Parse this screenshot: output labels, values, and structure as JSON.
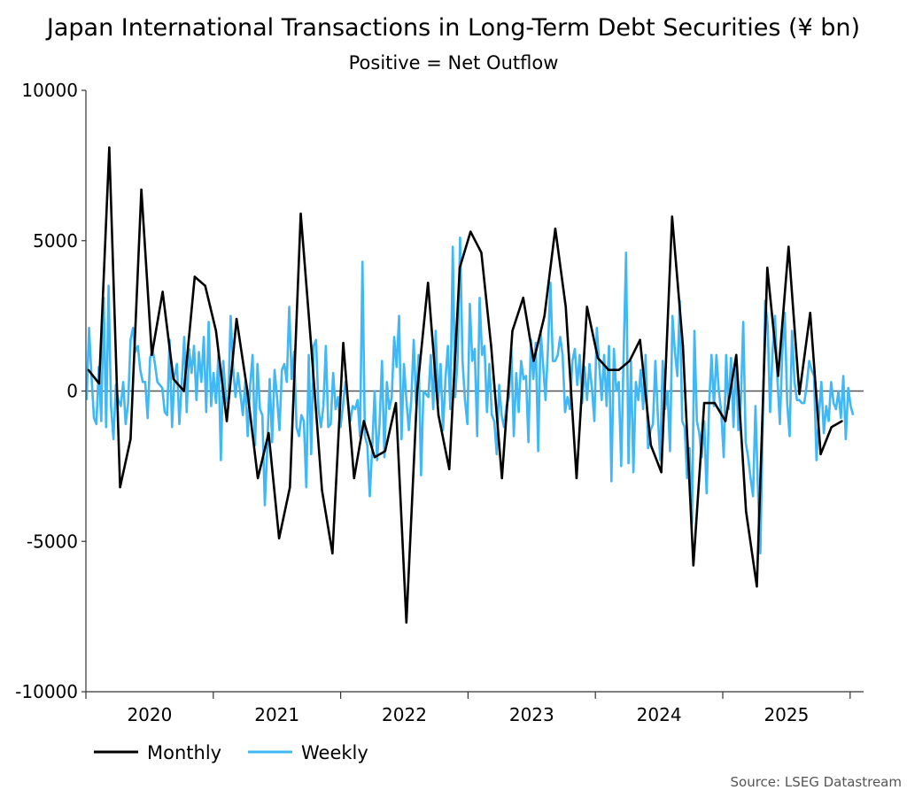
{
  "chart_data": {
    "type": "line",
    "title": "Japan International Transactions in Long-Term Debt Securities (¥ bn)",
    "subtitle": "Positive = Net Outflow",
    "source": "Source: LSEG Datastream",
    "xlabel": "",
    "ylabel": "",
    "ylim": [
      -10000,
      10000
    ],
    "y_ticks": [
      "10000",
      "5000",
      "0",
      "-5000",
      "-10000"
    ],
    "x_range": [
      "2020-01-01",
      "2026-02-01"
    ],
    "x_tick_labels": [
      "2020",
      "2021",
      "2022",
      "2023",
      "2024",
      "2025"
    ],
    "grid": false,
    "legend_position": "bottom-left",
    "colors": {
      "Monthly": "#000000",
      "Weekly": "#3fb8f5",
      "zero_line": "#555555"
    },
    "series": [
      {
        "name": "Monthly",
        "frequency": "monthly",
        "start": "2020-01",
        "values": [
          700,
          250,
          8100,
          -3200,
          -1600,
          6700,
          1200,
          3300,
          400,
          0,
          3800,
          3500,
          2000,
          -1000,
          2400,
          0,
          -2900,
          -1400,
          -4900,
          -3200,
          5900,
          1500,
          -3300,
          -5400,
          1600,
          -2900,
          -1000,
          -2200,
          -2000,
          -400,
          -7700,
          0,
          3600,
          -800,
          -2600,
          4100,
          5300,
          4600,
          1500,
          -2900,
          2000,
          3100,
          1000,
          2500,
          5400,
          2800,
          -2900,
          2800,
          1100,
          700,
          700,
          1000,
          1700,
          -1800,
          -2700,
          5800,
          1500,
          -5800,
          -400,
          -400,
          -1000,
          1200,
          -4000,
          -6500,
          4100,
          500,
          4800,
          -100,
          2600,
          -2100,
          -1200,
          -1000
        ]
      },
      {
        "name": "Weekly",
        "frequency": "weekly",
        "start": "2020-01-03",
        "values": [
          -300,
          2100,
          500,
          -900,
          -1100,
          800,
          -1000,
          3100,
          -1200,
          3500,
          -500,
          -1600,
          200,
          -300,
          -500,
          300,
          -1100,
          -400,
          1700,
          2100,
          1300,
          1500,
          700,
          300,
          300,
          -900,
          1100,
          1400,
          900,
          300,
          200,
          100,
          -700,
          -800,
          1700,
          -1200,
          500,
          900,
          -1100,
          300,
          1800,
          -700,
          1400,
          600,
          1500,
          -300,
          1300,
          300,
          1800,
          -700,
          2300,
          -500,
          600,
          -400,
          1200,
          -2300,
          1000,
          -200,
          -500,
          2500,
          800,
          -200,
          600,
          -100,
          -800,
          300,
          -1500,
          200,
          1200,
          -1800,
          900,
          -600,
          -800,
          -3800,
          -1900,
          400,
          -1700,
          700,
          -200,
          -1300,
          700,
          900,
          300,
          2800,
          400,
          1300,
          -1200,
          -1500,
          -800,
          -1000,
          -3200,
          1200,
          -2100,
          1500,
          1700,
          -600,
          -1200,
          -500,
          1500,
          -1200,
          -1100,
          600,
          -600,
          -200,
          -1200,
          -500,
          300,
          -300,
          -1000,
          -500,
          -600,
          -300,
          -1500,
          4300,
          -1500,
          -1800,
          -3500,
          -1900,
          0,
          -2300,
          -1100,
          1000,
          -2200,
          300,
          -600,
          -200,
          1800,
          800,
          2500,
          -1600,
          900,
          -300,
          -1300,
          -300,
          1700,
          -400,
          1200,
          -2800,
          0,
          -100,
          -200,
          1200,
          -600,
          2000,
          -400,
          900,
          -1300,
          400,
          1500,
          -600,
          4800,
          -200,
          1100,
          5100,
          1000,
          -300,
          -1100,
          2900,
          1000,
          1400,
          -1500,
          3100,
          1200,
          1500,
          -700,
          900,
          -800,
          -1000,
          -2100,
          200,
          -800,
          -1200,
          -500,
          -200,
          1400,
          -1500,
          600,
          -700,
          1000,
          400,
          500,
          -1700,
          1700,
          400,
          1600,
          -2000,
          2000,
          900,
          -300,
          1400,
          3600,
          1000,
          1000,
          1200,
          1800,
          1200,
          -700,
          -200,
          -600,
          1000,
          1400,
          200,
          1200,
          -400,
          800,
          -300,
          900,
          100,
          -1000,
          2100,
          900,
          -300,
          1200,
          -500,
          1500,
          -3000,
          1400,
          0,
          300,
          -2500,
          1200,
          4600,
          -2400,
          1000,
          -2700,
          300,
          -300,
          700,
          -600,
          1200,
          -1900,
          -1300,
          -1100,
          1000,
          -800,
          -2300,
          1000,
          -600,
          0,
          -2000,
          2500,
          1300,
          500,
          3000,
          -1000,
          -1200,
          -2900,
          -1900,
          -4400,
          2000,
          -1000,
          -1400,
          -2200,
          -1000,
          -3400,
          -500,
          1200,
          -500,
          1200,
          0,
          -700,
          -2200,
          1200,
          -600,
          1100,
          -1200,
          1100,
          -1300,
          -400,
          2300,
          -1700,
          -2200,
          -2900,
          -3500,
          -500,
          -3200,
          -5400,
          -1000,
          3000,
          2200,
          -700,
          1300,
          2500,
          400,
          -1100,
          1300,
          2600,
          -400,
          -1500,
          2000,
          300,
          -300,
          -300,
          -400,
          -400,
          200,
          1000,
          700,
          500,
          -2300,
          -800,
          300,
          -1400,
          -500,
          -1000,
          300,
          -400,
          -600,
          0,
          -900,
          500,
          -1600,
          100,
          -500,
          -800
        ]
      }
    ]
  }
}
